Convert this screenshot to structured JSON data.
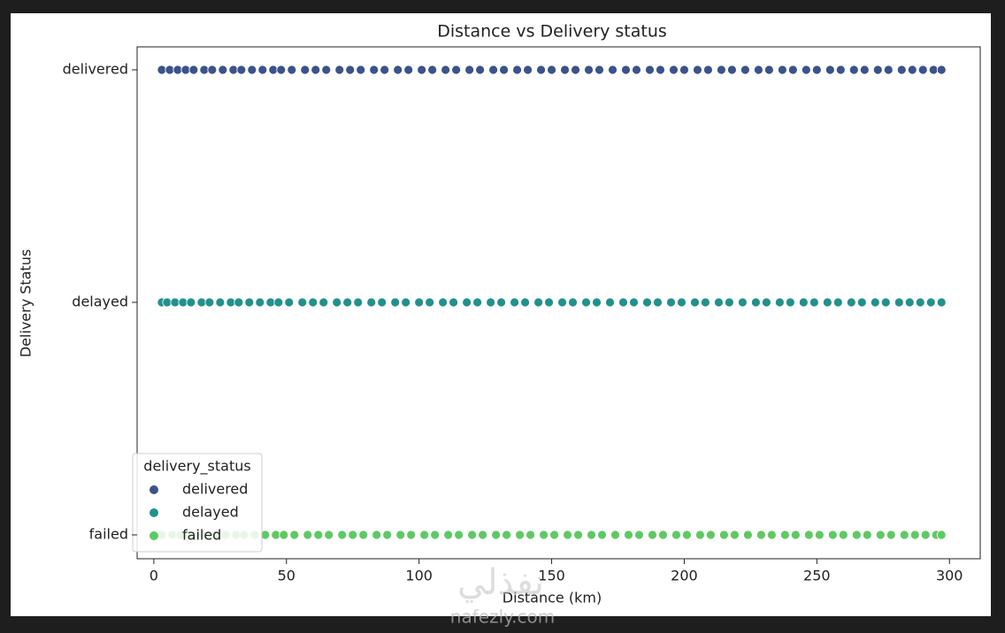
{
  "chart_data": {
    "type": "scatter",
    "title": "Distance vs Delivery status",
    "x_label": "Distance (km)",
    "y_label": "Delivery Status",
    "categories": [
      "delivered",
      "delayed",
      "failed"
    ],
    "xlim": [
      -6.3,
      311.6
    ],
    "xticks": [
      0,
      50,
      100,
      150,
      200,
      250,
      300
    ],
    "grid": false,
    "legend": "lower left",
    "legend_title": "delivery_status",
    "series": [
      {
        "name": "delivered",
        "color": "#3b528b",
        "values": [
          3,
          6,
          9,
          12,
          15,
          19,
          22,
          26,
          30,
          33,
          37,
          41,
          45,
          48,
          52,
          57,
          61,
          65,
          70,
          74,
          78,
          83,
          87,
          92,
          96,
          101,
          105,
          110,
          114,
          119,
          123,
          128,
          132,
          137,
          141,
          146,
          150,
          155,
          159,
          164,
          168,
          173,
          178,
          182,
          187,
          191,
          196,
          200,
          205,
          209,
          214,
          218,
          223,
          228,
          232,
          237,
          241,
          246,
          250,
          255,
          259,
          264,
          268,
          273,
          277,
          282,
          286,
          290,
          294,
          297
        ]
      },
      {
        "name": "delayed",
        "color": "#21918c",
        "values": [
          3,
          5,
          8,
          11,
          14,
          18,
          21,
          25,
          29,
          32,
          36,
          40,
          44,
          47,
          51,
          56,
          60,
          64,
          69,
          73,
          77,
          82,
          86,
          91,
          95,
          100,
          104,
          109,
          113,
          118,
          122,
          127,
          131,
          136,
          140,
          145,
          149,
          154,
          158,
          163,
          167,
          172,
          177,
          181,
          186,
          190,
          195,
          199,
          204,
          208,
          213,
          217,
          222,
          227,
          231,
          236,
          240,
          245,
          249,
          254,
          258,
          263,
          267,
          272,
          276,
          281,
          285,
          289,
          293,
          297
        ]
      },
      {
        "name": "failed",
        "color": "#5ec962",
        "values": [
          3,
          7,
          10,
          13,
          16,
          20,
          23,
          27,
          31,
          34,
          38,
          42,
          46,
          49,
          53,
          58,
          62,
          66,
          71,
          75,
          79,
          84,
          88,
          93,
          97,
          102,
          106,
          111,
          115,
          120,
          124,
          129,
          133,
          138,
          142,
          147,
          151,
          156,
          160,
          165,
          169,
          174,
          179,
          183,
          188,
          192,
          197,
          201,
          206,
          210,
          215,
          219,
          224,
          229,
          233,
          238,
          242,
          247,
          251,
          256,
          260,
          265,
          269,
          274,
          278,
          283,
          287,
          291,
          295,
          297
        ]
      }
    ]
  },
  "watermark": [
    "نفذلي",
    "nafezly.com"
  ]
}
